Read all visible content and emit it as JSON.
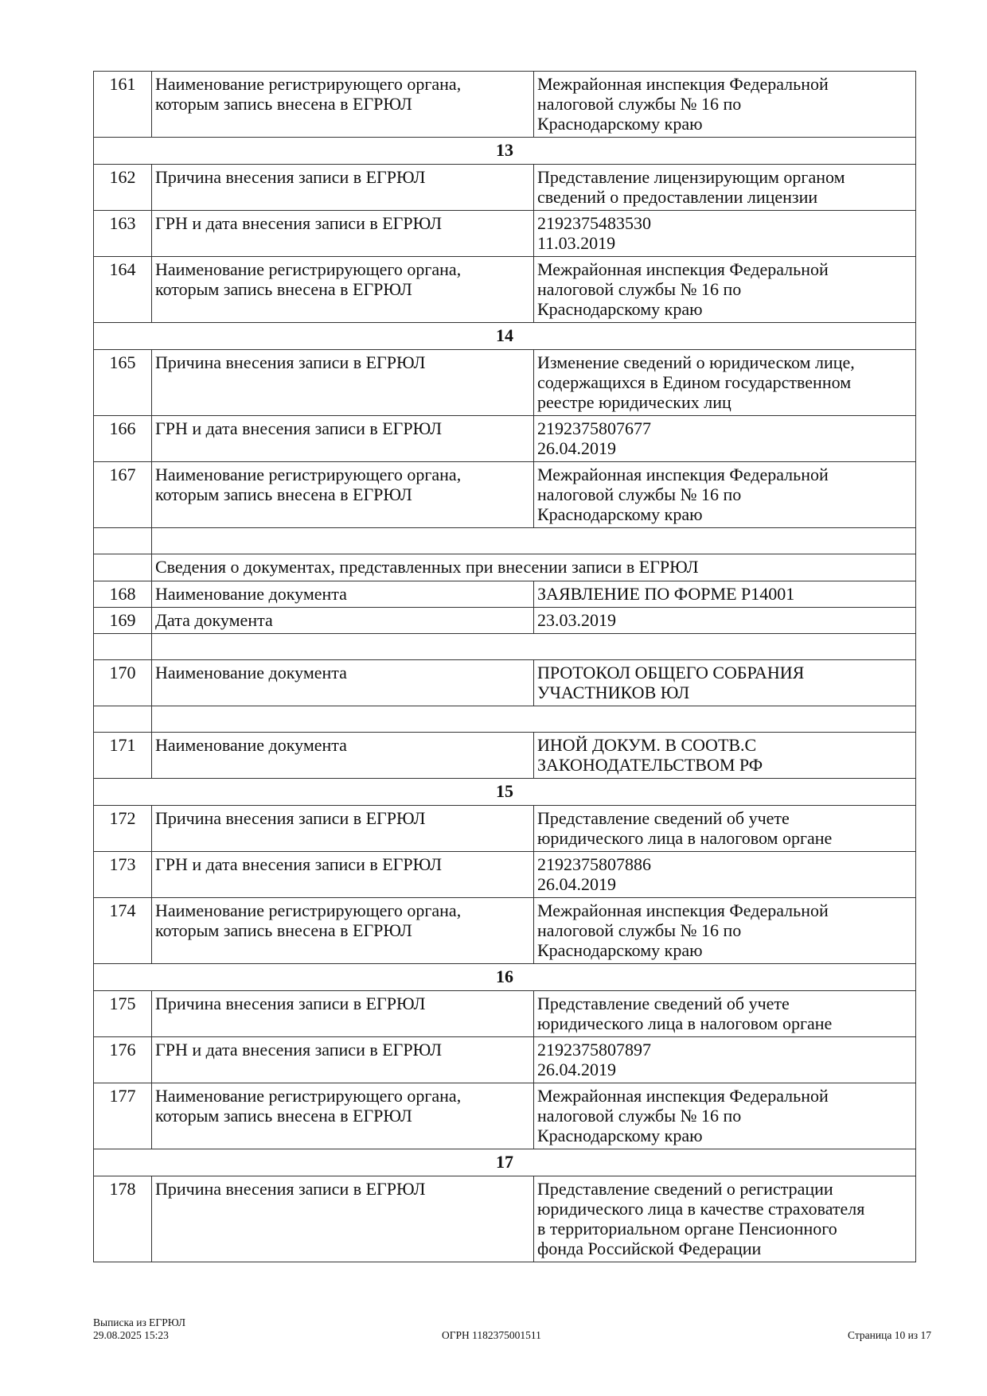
{
  "rows": [
    {
      "type": "row",
      "num": "161",
      "label": [
        "Наименование регистрирующего органа,",
        "которым запись внесена в ЕГРЮЛ"
      ],
      "value": [
        "Межрайонная инспекция Федеральной",
        "налоговой службы № 16 по",
        "Краснодарскому краю"
      ]
    },
    {
      "type": "section",
      "text": "13"
    },
    {
      "type": "row",
      "num": "162",
      "label": [
        "Причина внесения записи в ЕГРЮЛ"
      ],
      "value": [
        "Представление лицензирующим органом",
        "сведений о предоставлении лицензии"
      ]
    },
    {
      "type": "row",
      "num": "163",
      "label": [
        "ГРН и дата внесения записи в ЕГРЮЛ"
      ],
      "value": [
        "2192375483530",
        "11.03.2019"
      ]
    },
    {
      "type": "row",
      "num": "164",
      "label": [
        "Наименование регистрирующего органа,",
        "которым запись внесена в ЕГРЮЛ"
      ],
      "value": [
        "Межрайонная инспекция Федеральной",
        "налоговой службы № 16 по",
        "Краснодарскому краю"
      ]
    },
    {
      "type": "section",
      "text": "14"
    },
    {
      "type": "row",
      "num": "165",
      "label": [
        "Причина внесения записи в ЕГРЮЛ"
      ],
      "value": [
        "Изменение сведений о юридическом лице,",
        "содержащихся в Едином государственном",
        "реестре юридических лиц"
      ]
    },
    {
      "type": "row",
      "num": "166",
      "label": [
        "ГРН и дата внесения записи в ЕГРЮЛ"
      ],
      "value": [
        "2192375807677",
        "26.04.2019"
      ]
    },
    {
      "type": "row",
      "num": "167",
      "label": [
        "Наименование регистрирующего органа,",
        "которым запись внесена в ЕГРЮЛ"
      ],
      "value": [
        "Межрайонная инспекция Федеральной",
        "налоговой службы № 16 по",
        "Краснодарскому краю"
      ]
    },
    {
      "type": "blank"
    },
    {
      "type": "subheader",
      "text": "Сведения о документах, представленных при внесении записи в ЕГРЮЛ"
    },
    {
      "type": "row",
      "num": "168",
      "label": [
        "Наименование документа"
      ],
      "value": [
        "ЗАЯВЛЕНИЕ ПО ФОРМЕ Р14001"
      ]
    },
    {
      "type": "row",
      "num": "169",
      "label": [
        "Дата документа"
      ],
      "value": [
        "23.03.2019"
      ]
    },
    {
      "type": "blank"
    },
    {
      "type": "row",
      "num": "170",
      "label": [
        "Наименование документа"
      ],
      "value": [
        "ПРОТОКОЛ ОБЩЕГО СОБРАНИЯ",
        "УЧАСТНИКОВ ЮЛ"
      ]
    },
    {
      "type": "blank"
    },
    {
      "type": "row",
      "num": "171",
      "label": [
        "Наименование документа"
      ],
      "value": [
        "ИНОЙ ДОКУМ. В СООТВ.С",
        "ЗАКОНОДАТЕЛЬСТВОМ РФ"
      ]
    },
    {
      "type": "section",
      "text": "15"
    },
    {
      "type": "row",
      "num": "172",
      "label": [
        "Причина внесения записи в ЕГРЮЛ"
      ],
      "value": [
        "Представление сведений об учете",
        "юридического лица в налоговом органе"
      ]
    },
    {
      "type": "row",
      "num": "173",
      "label": [
        "ГРН и дата внесения записи в ЕГРЮЛ"
      ],
      "value": [
        "2192375807886",
        "26.04.2019"
      ]
    },
    {
      "type": "row",
      "num": "174",
      "label": [
        "Наименование регистрирующего органа,",
        "которым запись внесена в ЕГРЮЛ"
      ],
      "value": [
        "Межрайонная инспекция Федеральной",
        "налоговой службы № 16 по",
        "Краснодарскому краю"
      ]
    },
    {
      "type": "section",
      "text": "16"
    },
    {
      "type": "row",
      "num": "175",
      "label": [
        "Причина внесения записи в ЕГРЮЛ"
      ],
      "value": [
        "Представление сведений об учете",
        "юридического лица в налоговом органе"
      ]
    },
    {
      "type": "row",
      "num": "176",
      "label": [
        "ГРН и дата внесения записи в ЕГРЮЛ"
      ],
      "value": [
        "2192375807897",
        "26.04.2019"
      ]
    },
    {
      "type": "row",
      "num": "177",
      "label": [
        "Наименование регистрирующего органа,",
        "которым запись внесена в ЕГРЮЛ"
      ],
      "value": [
        "Межрайонная инспекция Федеральной",
        "налоговой службы № 16 по",
        "Краснодарскому краю"
      ]
    },
    {
      "type": "section",
      "text": "17"
    },
    {
      "type": "row",
      "num": "178",
      "label": [
        "Причина внесения записи в ЕГРЮЛ"
      ],
      "value": [
        "Представление сведений о регистрации",
        "юридического лица в качестве страхователя",
        "в территориальном органе Пенсионного",
        "фонда Российской Федерации"
      ]
    }
  ],
  "footer": {
    "doc_title": "Выписка из ЕГРЮЛ",
    "datetime": "29.08.2025 15:23",
    "ogrn": "ОГРН 1182375001511",
    "page": "Страница 10 из 17"
  }
}
